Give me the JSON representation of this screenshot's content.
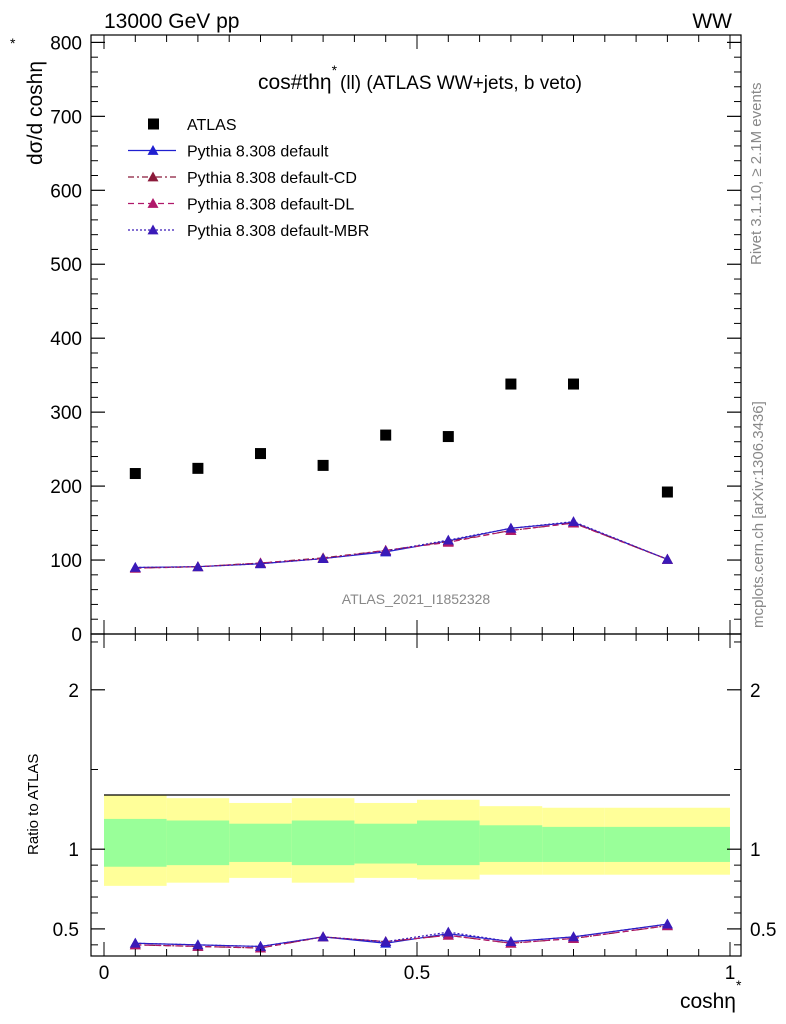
{
  "header": {
    "left": "13000 GeV pp",
    "right": "WW"
  },
  "side": {
    "rivet": "Rivet 3.1.10, ≥ 2.1M events",
    "mcplots": "mcplots.cern.ch [arXiv:1306.3436]"
  },
  "watermark": "ATLAS_2021_I1852328",
  "chart_data": [
    {
      "type": "scatter",
      "title": "cos#thη* (ll) (ATLAS WW+jets, b veto)",
      "title_main": "cos#thη",
      "title_sup": "*",
      "title_rest": "(ll) (ATLAS WW+jets, b veto)",
      "ylabel": "dσ/d coshη",
      "ylabel_sup": "*",
      "ylim": [
        0,
        810
      ],
      "yticks": [
        "0",
        "100",
        "200",
        "300",
        "400",
        "500",
        "600",
        "700",
        "800"
      ],
      "x": [
        0.05,
        0.15,
        0.25,
        0.35,
        0.45,
        0.55,
        0.65,
        0.75,
        0.9
      ],
      "series": [
        {
          "name": "ATLAS",
          "values": [
            217,
            224,
            244,
            228,
            269,
            267,
            338,
            338,
            192
          ]
        },
        {
          "name": "Pythia 8.308 default",
          "values": [
            90,
            91,
            95,
            102,
            111,
            126,
            143,
            151,
            101
          ]
        },
        {
          "name": "Pythia 8.308 default-CD",
          "values": [
            89,
            91,
            96,
            103,
            113,
            125,
            140,
            150,
            101
          ]
        },
        {
          "name": "Pythia 8.308 default-DL",
          "values": [
            89,
            91,
            96,
            102,
            113,
            124,
            140,
            150,
            101
          ]
        },
        {
          "name": "Pythia 8.308 default-MBR",
          "values": [
            90,
            91,
            95,
            102,
            112,
            127,
            143,
            152,
            101
          ]
        }
      ],
      "colors": {
        "ATLAS": "#000000",
        "default": "#1f1fd0",
        "CD": "#8b1a3a",
        "DL": "#b0186a",
        "MBR": "#3a1ab8"
      }
    },
    {
      "type": "scatter",
      "ylabel": "Ratio to ATLAS",
      "xlabel": "coshη",
      "xlabel_sup": "*",
      "xlim": [
        0,
        1
      ],
      "xticks": [
        "0",
        "0.5",
        "1"
      ],
      "ylim": [
        0.33,
        2.35
      ],
      "yticks": [
        "0.5",
        "1",
        "2"
      ],
      "bin_edges": [
        0,
        0.1,
        0.2,
        0.3,
        0.4,
        0.5,
        0.6,
        0.7,
        0.8,
        1.0
      ],
      "band_yellow": [
        [
          0.77,
          1.34
        ],
        [
          0.79,
          1.32
        ],
        [
          0.82,
          1.29
        ],
        [
          0.79,
          1.32
        ],
        [
          0.82,
          1.29
        ],
        [
          0.81,
          1.31
        ],
        [
          0.84,
          1.27
        ],
        [
          0.84,
          1.26
        ],
        [
          0.84,
          1.26
        ]
      ],
      "band_green": [
        [
          0.89,
          1.19
        ],
        [
          0.9,
          1.18
        ],
        [
          0.92,
          1.16
        ],
        [
          0.9,
          1.18
        ],
        [
          0.91,
          1.16
        ],
        [
          0.9,
          1.18
        ],
        [
          0.92,
          1.15
        ],
        [
          0.92,
          1.14
        ],
        [
          0.92,
          1.14
        ]
      ],
      "series": [
        {
          "name": "default",
          "values": [
            0.41,
            0.4,
            0.39,
            0.45,
            0.41,
            0.47,
            0.42,
            0.45,
            0.53
          ]
        },
        {
          "name": "default-CD",
          "values": [
            0.4,
            0.39,
            0.38,
            0.45,
            0.42,
            0.46,
            0.41,
            0.44,
            0.52
          ]
        },
        {
          "name": "default-DL",
          "values": [
            0.4,
            0.39,
            0.38,
            0.45,
            0.42,
            0.46,
            0.41,
            0.44,
            0.52
          ]
        },
        {
          "name": "default-MBR",
          "values": [
            0.41,
            0.4,
            0.39,
            0.45,
            0.42,
            0.48,
            0.42,
            0.45,
            0.53
          ]
        }
      ]
    }
  ]
}
